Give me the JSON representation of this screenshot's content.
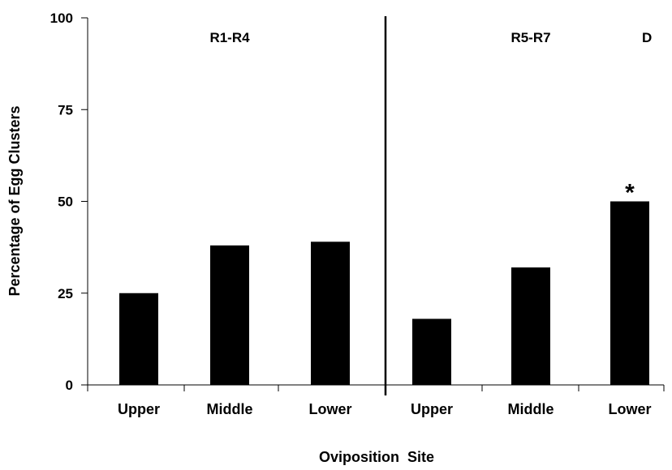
{
  "chart_data": {
    "type": "bar",
    "xlabel": "Oviposition  Site",
    "ylabel": "Percentage of Egg Clusters",
    "ylim": [
      0,
      100
    ],
    "yticks": [
      "0",
      "25",
      "50",
      "75",
      "100"
    ],
    "panel_label": "D",
    "groups": [
      {
        "label": "R1-R4",
        "categories": [
          "Upper",
          "Middle",
          "Lower"
        ]
      },
      {
        "label": "R5-R7",
        "categories": [
          "Upper",
          "Middle",
          "Lower"
        ]
      }
    ],
    "categories": [
      "Upper",
      "Middle",
      "Lower",
      "Upper",
      "Middle",
      "Lower"
    ],
    "values": [
      25,
      38,
      39,
      18,
      32,
      50
    ],
    "bar_color": "#000000",
    "annotations": [
      {
        "category_index": 5,
        "text": "*"
      }
    ]
  }
}
